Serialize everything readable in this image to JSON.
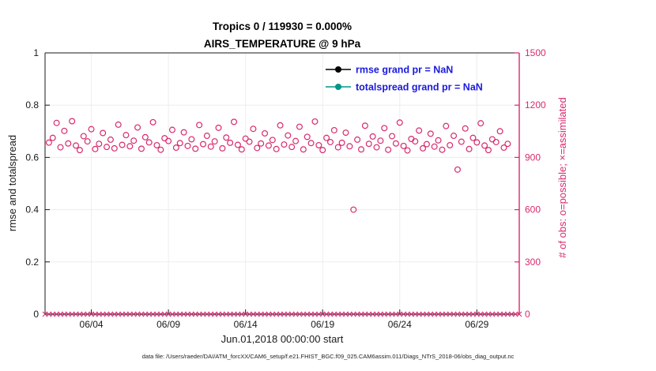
{
  "figure": {
    "caption": "data file: /Users/raeder/DAI/ATM_forcXX/CAM6_setup/f.e21.FHIST_BGC.f09_025.CAM6assim.011/Diags_NTrS_2018-06/obs_diag_output.nc"
  },
  "chart_data": {
    "type": "scatter",
    "title": "Tropics 0 / 119930 = 0.000%",
    "subtitle": "AIRS_TEMPERATURE @ 9 hPa",
    "xlabel": "Jun.01,2018 00:00:00 start",
    "ylabel_left": "rmse and totalspread",
    "ylabel_right": "# of obs: o=possible; ×=assimilated",
    "ylim_left": [
      0,
      1
    ],
    "yticks_left": [
      "0",
      "0.2",
      "0.4",
      "0.6",
      "0.8",
      "1"
    ],
    "ylim_right": [
      0,
      1500
    ],
    "yticks_right": [
      "0",
      "300",
      "600",
      "900",
      "1200",
      "1500"
    ],
    "xlim": [
      1,
      31.75
    ],
    "xticks": [
      {
        "day": 4,
        "label": "06/04"
      },
      {
        "day": 9,
        "label": "06/09"
      },
      {
        "day": 14,
        "label": "06/14"
      },
      {
        "day": 19,
        "label": "06/19"
      },
      {
        "day": 24,
        "label": "06/24"
      },
      {
        "day": 29,
        "label": "06/29"
      }
    ],
    "grid": true,
    "legend": {
      "position": "top-center-inside",
      "entries": [
        {
          "label": "rmse grand pr = NaN",
          "color": "#000000",
          "text_color": "#1a1ae0"
        },
        {
          "label": "totalspread grand pr = NaN",
          "color": "#009688",
          "text_color": "#1a1ae0"
        }
      ]
    },
    "colors": {
      "obs": "#d9296f",
      "axis": "#1a1a1a",
      "grid": "#ededed"
    },
    "series": [
      {
        "name": "possible",
        "marker": "o",
        "color": "#d9296f",
        "x_start": 1.25,
        "x_step": 0.25,
        "values": [
          985,
          1012,
          1098,
          958,
          1052,
          980,
          1108,
          968,
          942,
          1022,
          992,
          1062,
          948,
          978,
          1040,
          960,
          1002,
          952,
          1088,
          972,
          1028,
          964,
          996,
          1072,
          950,
          1016,
          986,
          1102,
          970,
          944,
          1010,
          994,
          1058,
          956,
          982,
          1044,
          966,
          1004,
          950,
          1086,
          976,
          1024,
          962,
          992,
          1070,
          952,
          1014,
          984,
          1104,
          972,
          946,
          1008,
          990,
          1064,
          954,
          980,
          1038,
          968,
          1000,
          948,
          1084,
          974,
          1026,
          960,
          994,
          1076,
          946,
          1018,
          982,
          1106,
          970,
          942,
          1012,
          988,
          1056,
          958,
          984,
          1042,
          964,
          600,
          1002,
          946,
          1082,
          978,
          1020,
          958,
          996,
          1068,
          944,
          1022,
          980,
          1100,
          966,
          940,
          1006,
          992,
          1054,
          952,
          976,
          1036,
          962,
          998,
          944,
          1080,
          970,
          1024,
          830,
          990,
          1066,
          948,
          1012,
          986,
          1096,
          968,
          942,
          1004,
          988,
          1050,
          956,
          978
        ]
      },
      {
        "name": "assimilated",
        "marker": "x",
        "color": "#d9296f",
        "x_start": 1.0,
        "x_step": 0.25,
        "count": 124,
        "constant_value": 0
      }
    ]
  }
}
